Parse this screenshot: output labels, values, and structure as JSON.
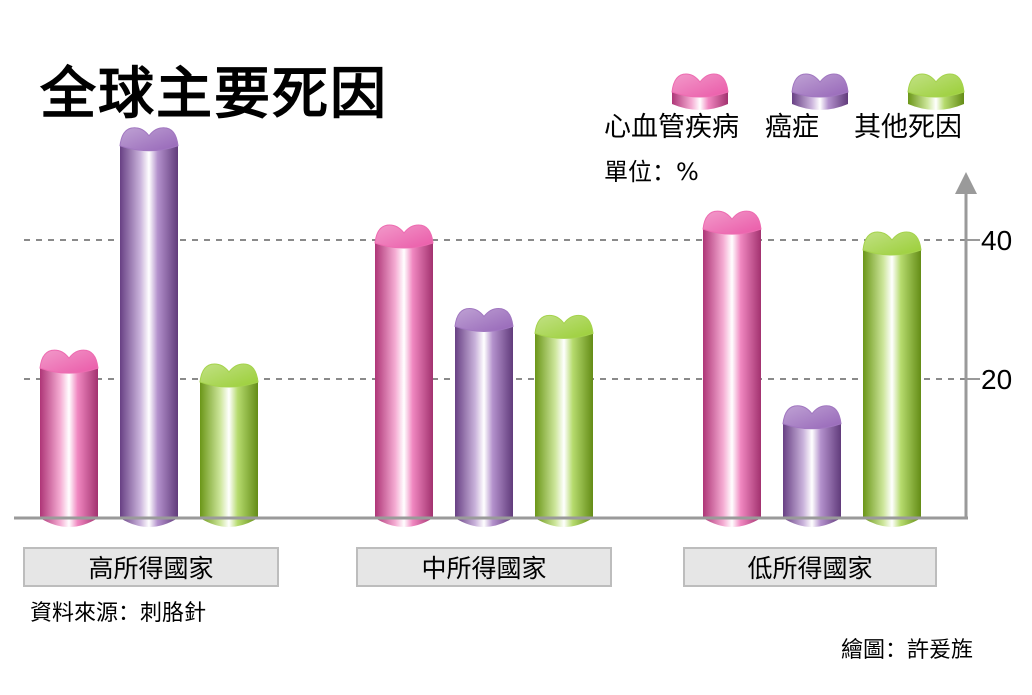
{
  "chart_data": {
    "type": "bar",
    "title": "全球主要死因",
    "unit": "單位：%",
    "categories": [
      "高所得國家",
      "中所得國家",
      "低所得國家"
    ],
    "series": [
      {
        "name": "心血管疾病",
        "values": [
          23,
          41,
          43
        ],
        "color": "#e8479e"
      },
      {
        "name": "癌症",
        "values": [
          55,
          29,
          15
        ],
        "color": "#8a55b0"
      },
      {
        "name": "其他死因",
        "values": [
          21,
          28,
          40
        ],
        "color": "#8fc820"
      }
    ],
    "yticks": [
      20,
      40
    ],
    "ylim": [
      0,
      60
    ],
    "grid": "dashed",
    "legend": "top-right",
    "source": "資料來源：刺胳針",
    "credit": "繪圖：許爰旌"
  }
}
